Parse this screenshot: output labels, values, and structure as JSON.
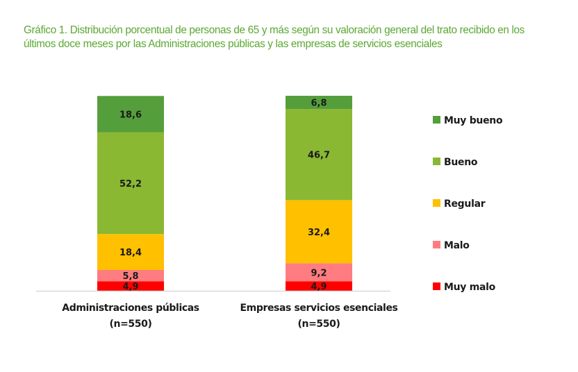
{
  "chart_data": {
    "type": "bar",
    "stacked": true,
    "title": "Gráfico 1. Distribución porcentual de personas de 65 y más según su valoración general del trato recibido en los últimos doce meses por las Administraciones públicas y las empresas de servicios esenciales",
    "categories": [
      {
        "line1": "Administraciones públicas",
        "line2": "(n=550)"
      },
      {
        "line1": "Empresas servicios esenciales",
        "line2": "(n=550)"
      }
    ],
    "series": [
      {
        "name": "Muy malo",
        "color": "#ff0000",
        "values": [
          4.9,
          4.9
        ],
        "labels": [
          "4,9",
          "4,9"
        ]
      },
      {
        "name": "Malo",
        "color": "#ff7c80",
        "values": [
          5.8,
          9.2
        ],
        "labels": [
          "5,8",
          "9,2"
        ]
      },
      {
        "name": "Regular",
        "color": "#ffc000",
        "values": [
          18.4,
          32.4
        ],
        "labels": [
          "18,4",
          "32,4"
        ]
      },
      {
        "name": "Bueno",
        "color": "#8ab833",
        "values": [
          52.2,
          46.7
        ],
        "labels": [
          "52,2",
          "46,7"
        ]
      },
      {
        "name": "Muy bueno",
        "color": "#559e3c",
        "values": [
          18.6,
          6.8
        ],
        "labels": [
          "18,6",
          "6,8"
        ]
      }
    ],
    "legend_order": [
      "Muy bueno",
      "Bueno",
      "Regular",
      "Malo",
      "Muy malo"
    ],
    "legend_position": "right",
    "ylim": [
      0,
      100
    ],
    "xlabel": "",
    "ylabel": "",
    "grid": false,
    "axis_color": "#d9d9d9"
  }
}
